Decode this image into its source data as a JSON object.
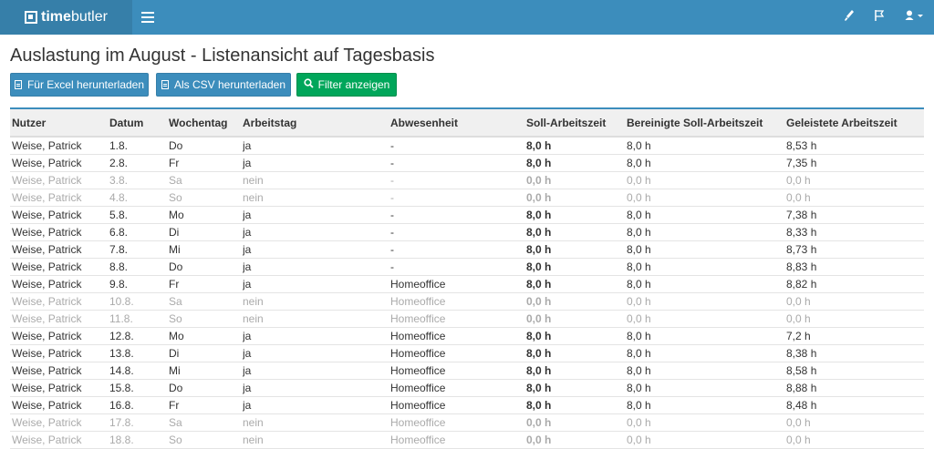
{
  "app": {
    "logo_bold": "time",
    "logo_light": "butler"
  },
  "page": {
    "title": "Auslastung im August - Listenansicht auf Tagesbasis"
  },
  "buttons": {
    "excel": "Für Excel herunterladen",
    "csv": "Als CSV herunterladen",
    "filter": "Filter anzeigen"
  },
  "colors": {
    "header": "#3c8dbc",
    "logo_bg": "#367fa9",
    "green": "#00a65a"
  },
  "table": {
    "headers": [
      "Nutzer",
      "Datum",
      "Wochentag",
      "Arbeitstag",
      "Abwesenheit",
      "Soll-Arbeitszeit",
      "Bereinigte Soll-Arbeitszeit",
      "Geleistete Arbeitszeit"
    ],
    "rows": [
      [
        "Weise, Patrick",
        "1.8.",
        "Do",
        "ja",
        "-",
        "8,0 h",
        "8,0 h",
        "8,53 h"
      ],
      [
        "Weise, Patrick",
        "2.8.",
        "Fr",
        "ja",
        "-",
        "8,0 h",
        "8,0 h",
        "7,35 h"
      ],
      [
        "Weise, Patrick",
        "3.8.",
        "Sa",
        "nein",
        "-",
        "0,0 h",
        "0,0 h",
        "0,0 h"
      ],
      [
        "Weise, Patrick",
        "4.8.",
        "So",
        "nein",
        "-",
        "0,0 h",
        "0,0 h",
        "0,0 h"
      ],
      [
        "Weise, Patrick",
        "5.8.",
        "Mo",
        "ja",
        "-",
        "8,0 h",
        "8,0 h",
        "7,38 h"
      ],
      [
        "Weise, Patrick",
        "6.8.",
        "Di",
        "ja",
        "-",
        "8,0 h",
        "8,0 h",
        "8,33 h"
      ],
      [
        "Weise, Patrick",
        "7.8.",
        "Mi",
        "ja",
        "-",
        "8,0 h",
        "8,0 h",
        "8,73 h"
      ],
      [
        "Weise, Patrick",
        "8.8.",
        "Do",
        "ja",
        "-",
        "8,0 h",
        "8,0 h",
        "8,83 h"
      ],
      [
        "Weise, Patrick",
        "9.8.",
        "Fr",
        "ja",
        "Homeoffice",
        "8,0 h",
        "8,0 h",
        "8,82 h"
      ],
      [
        "Weise, Patrick",
        "10.8.",
        "Sa",
        "nein",
        "Homeoffice",
        "0,0 h",
        "0,0 h",
        "0,0 h"
      ],
      [
        "Weise, Patrick",
        "11.8.",
        "So",
        "nein",
        "Homeoffice",
        "0,0 h",
        "0,0 h",
        "0,0 h"
      ],
      [
        "Weise, Patrick",
        "12.8.",
        "Mo",
        "ja",
        "Homeoffice",
        "8,0 h",
        "8,0 h",
        "7,2 h"
      ],
      [
        "Weise, Patrick",
        "13.8.",
        "Di",
        "ja",
        "Homeoffice",
        "8,0 h",
        "8,0 h",
        "8,38 h"
      ],
      [
        "Weise, Patrick",
        "14.8.",
        "Mi",
        "ja",
        "Homeoffice",
        "8,0 h",
        "8,0 h",
        "8,58 h"
      ],
      [
        "Weise, Patrick",
        "15.8.",
        "Do",
        "ja",
        "Homeoffice",
        "8,0 h",
        "8,0 h",
        "8,88 h"
      ],
      [
        "Weise, Patrick",
        "16.8.",
        "Fr",
        "ja",
        "Homeoffice",
        "8,0 h",
        "8,0 h",
        "8,48 h"
      ],
      [
        "Weise, Patrick",
        "17.8.",
        "Sa",
        "nein",
        "Homeoffice",
        "0,0 h",
        "0,0 h",
        "0,0 h"
      ],
      [
        "Weise, Patrick",
        "18.8.",
        "So",
        "nein",
        "Homeoffice",
        "0,0 h",
        "0,0 h",
        "0,0 h"
      ]
    ]
  }
}
